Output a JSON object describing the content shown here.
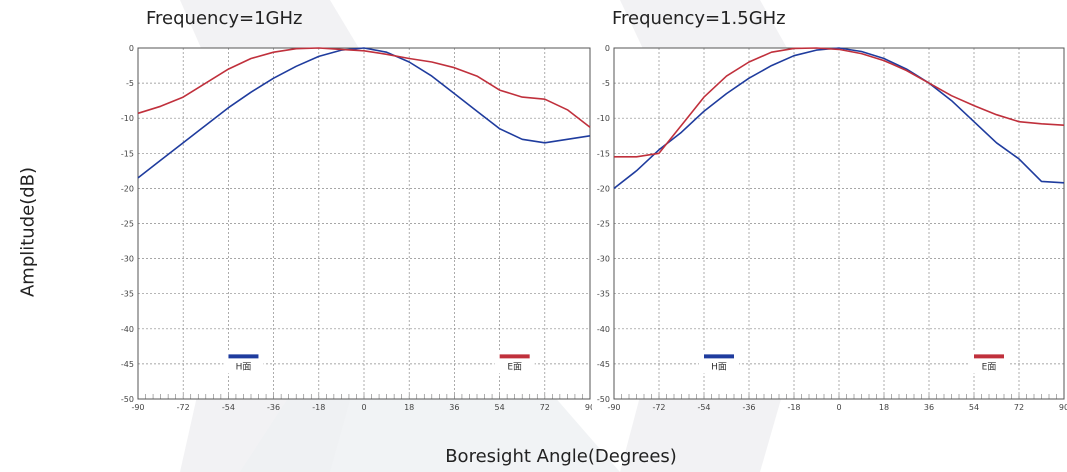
{
  "figure": {
    "ylabel": "Amplitude(dB)",
    "xlabel": "Boresight Angle(Degrees)"
  },
  "chart_data": [
    {
      "type": "line",
      "title": "Frequency=1GHz",
      "xlim": [
        -90,
        90
      ],
      "ylim": [
        -50,
        0
      ],
      "xticks": [
        -90,
        -72,
        -54,
        -36,
        -18,
        0,
        18,
        36,
        54,
        72,
        90
      ],
      "yticks": [
        0,
        -5,
        -10,
        -15,
        -20,
        -25,
        -30,
        -35,
        -40,
        -45,
        -50
      ],
      "grid": true,
      "legend": "bottom",
      "series": [
        {
          "name": "H面",
          "color": "#1f3c9e",
          "points": [
            [
              -90,
              -18.5
            ],
            [
              -81,
              -16
            ],
            [
              -72,
              -13.5
            ],
            [
              -63,
              -11
            ],
            [
              -54,
              -8.5
            ],
            [
              -45,
              -6.3
            ],
            [
              -36,
              -4.3
            ],
            [
              -27,
              -2.6
            ],
            [
              -18,
              -1.2
            ],
            [
              -9,
              -0.3
            ],
            [
              0,
              0
            ],
            [
              9,
              -0.6
            ],
            [
              18,
              -2
            ],
            [
              27,
              -4
            ],
            [
              36,
              -6.5
            ],
            [
              45,
              -9
            ],
            [
              54,
              -11.5
            ],
            [
              63,
              -13
            ],
            [
              72,
              -13.5
            ],
            [
              81,
              -13
            ],
            [
              90,
              -12.5
            ]
          ]
        },
        {
          "name": "E面",
          "color": "#c0303c",
          "points": [
            [
              -90,
              -9.3
            ],
            [
              -81,
              -8.3
            ],
            [
              -72,
              -7
            ],
            [
              -63,
              -5
            ],
            [
              -54,
              -3
            ],
            [
              -45,
              -1.5
            ],
            [
              -36,
              -0.6
            ],
            [
              -27,
              -0.1
            ],
            [
              -18,
              0
            ],
            [
              -9,
              -0.2
            ],
            [
              0,
              -0.4
            ],
            [
              9,
              -0.9
            ],
            [
              18,
              -1.5
            ],
            [
              27,
              -2
            ],
            [
              36,
              -2.8
            ],
            [
              45,
              -4
            ],
            [
              54,
              -6
            ],
            [
              63,
              -7
            ],
            [
              72,
              -7.3
            ],
            [
              81,
              -8.8
            ],
            [
              90,
              -11.3
            ]
          ]
        }
      ]
    },
    {
      "type": "line",
      "title": "Frequency=1.5GHz",
      "xlim": [
        -90,
        90
      ],
      "ylim": [
        -50,
        0
      ],
      "xticks": [
        -90,
        -72,
        -54,
        -36,
        -18,
        0,
        18,
        36,
        54,
        72,
        90
      ],
      "yticks": [
        0,
        -5,
        -10,
        -15,
        -20,
        -25,
        -30,
        -35,
        -40,
        -45,
        -50
      ],
      "grid": true,
      "legend": "bottom",
      "series": [
        {
          "name": "H面",
          "color": "#1f3c9e",
          "points": [
            [
              -90,
              -20
            ],
            [
              -81,
              -17.5
            ],
            [
              -72,
              -14.5
            ],
            [
              -63,
              -12
            ],
            [
              -54,
              -9
            ],
            [
              -45,
              -6.5
            ],
            [
              -36,
              -4.3
            ],
            [
              -27,
              -2.5
            ],
            [
              -18,
              -1.1
            ],
            [
              -9,
              -0.3
            ],
            [
              0,
              0
            ],
            [
              9,
              -0.5
            ],
            [
              18,
              -1.5
            ],
            [
              27,
              -3
            ],
            [
              36,
              -5
            ],
            [
              45,
              -7.5
            ],
            [
              54,
              -10.5
            ],
            [
              63,
              -13.5
            ],
            [
              72,
              -15.8
            ],
            [
              81,
              -19
            ],
            [
              90,
              -19.2
            ]
          ]
        },
        {
          "name": "E面",
          "color": "#c0303c",
          "points": [
            [
              -90,
              -15.5
            ],
            [
              -81,
              -15.5
            ],
            [
              -72,
              -15
            ],
            [
              -63,
              -11
            ],
            [
              -54,
              -7
            ],
            [
              -45,
              -4
            ],
            [
              -36,
              -2
            ],
            [
              -27,
              -0.6
            ],
            [
              -18,
              -0.05
            ],
            [
              -9,
              0
            ],
            [
              0,
              -0.2
            ],
            [
              9,
              -0.8
            ],
            [
              18,
              -1.8
            ],
            [
              27,
              -3.2
            ],
            [
              36,
              -5
            ],
            [
              45,
              -6.8
            ],
            [
              54,
              -8.2
            ],
            [
              63,
              -9.5
            ],
            [
              72,
              -10.5
            ],
            [
              81,
              -10.8
            ],
            [
              90,
              -11
            ]
          ]
        }
      ]
    }
  ]
}
